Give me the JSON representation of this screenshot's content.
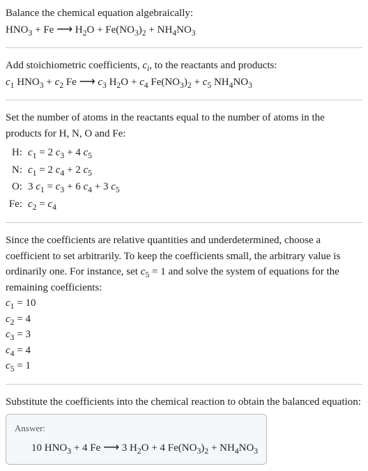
{
  "s1": {
    "intro": "Balance the chemical equation algebraically:",
    "lhs1": "HNO",
    "lhs1_sub": "3",
    "plus": " + ",
    "lhs2": "Fe",
    "arrow": " ⟶ ",
    "rhs1": "H",
    "rhs1_sub": "2",
    "rhs1b": "O",
    "rhs2a": "Fe(NO",
    "rhs2a_sub": "3",
    "rhs2b": ")",
    "rhs2b_sub": "2",
    "rhs3a": "NH",
    "rhs3a_sub": "4",
    "rhs3b": "NO",
    "rhs3b_sub": "3"
  },
  "s2": {
    "intro_a": "Add stoichiometric coefficients, ",
    "ci": "c",
    "ci_sub": "i",
    "intro_b": ", to the reactants and products:",
    "c1": "c",
    "c1s": "1",
    "c2": "c",
    "c2s": "2",
    "c3": "c",
    "c3s": "3",
    "c4": "c",
    "c4s": "4",
    "c5": "c",
    "c5s": "5"
  },
  "s3": {
    "intro": "Set the number of atoms in the reactants equal to the number of atoms in the products for H, N, O and Fe:",
    "rows": {
      "H": {
        "el": "H:",
        "c1": "c",
        "c1s": "1",
        "eq": " = 2 ",
        "c3": "c",
        "c3s": "3",
        "p": " + 4 ",
        "c5": "c",
        "c5s": "5"
      },
      "N": {
        "el": "N:",
        "c1": "c",
        "c1s": "1",
        "eq": " = 2 ",
        "c4": "c",
        "c4s": "4",
        "p": " + 2 ",
        "c5": "c",
        "c5s": "5"
      },
      "O": {
        "el": "O:",
        "pre": "3 ",
        "c1": "c",
        "c1s": "1",
        "eq": " = ",
        "c3": "c",
        "c3s": "3",
        "p": " + 6 ",
        "c4": "c",
        "c4s": "4",
        "p2": " + 3 ",
        "c5": "c",
        "c5s": "5"
      },
      "Fe": {
        "el": "Fe:",
        "c2": "c",
        "c2s": "2",
        "eq": " = ",
        "c4": "c",
        "c4s": "4"
      }
    }
  },
  "s4": {
    "para_a": "Since the coefficients are relative quantities and underdetermined, choose a coefficient to set arbitrarily. To keep the coefficients small, the arbitrary value is ordinarily one. For instance, set ",
    "c5": "c",
    "c5s": "5",
    "para_b": " = 1 and solve the system of equations for the remaining coefficients:",
    "coefs": {
      "c1": {
        "c": "c",
        "s": "1",
        "v": " = 10"
      },
      "c2": {
        "c": "c",
        "s": "2",
        "v": " = 4"
      },
      "c3": {
        "c": "c",
        "s": "3",
        "v": " = 3"
      },
      "c4": {
        "c": "c",
        "s": "4",
        "v": " = 4"
      },
      "c5": {
        "c": "c",
        "s": "5",
        "v": " = 1"
      }
    }
  },
  "s5": {
    "intro": "Substitute the coefficients into the chemical reaction to obtain the balanced equation:",
    "answer_label": "Answer:",
    "ans": {
      "n1": "10 ",
      "hno3": "HNO",
      "hno3s": "3",
      "p1": " + 4 Fe",
      "arrow": " ⟶ ",
      "n3": "3 ",
      "h2o_a": "H",
      "h2o_s1": "2",
      "h2o_b": "O",
      "p2": " + 4 ",
      "fe_a": "Fe(NO",
      "fe_s1": "3",
      "fe_b": ")",
      "fe_s2": "2",
      "p3": " + ",
      "nh4_a": "NH",
      "nh4_s1": "4",
      "nh4_b": "NO",
      "nh4_s2": "3"
    }
  }
}
